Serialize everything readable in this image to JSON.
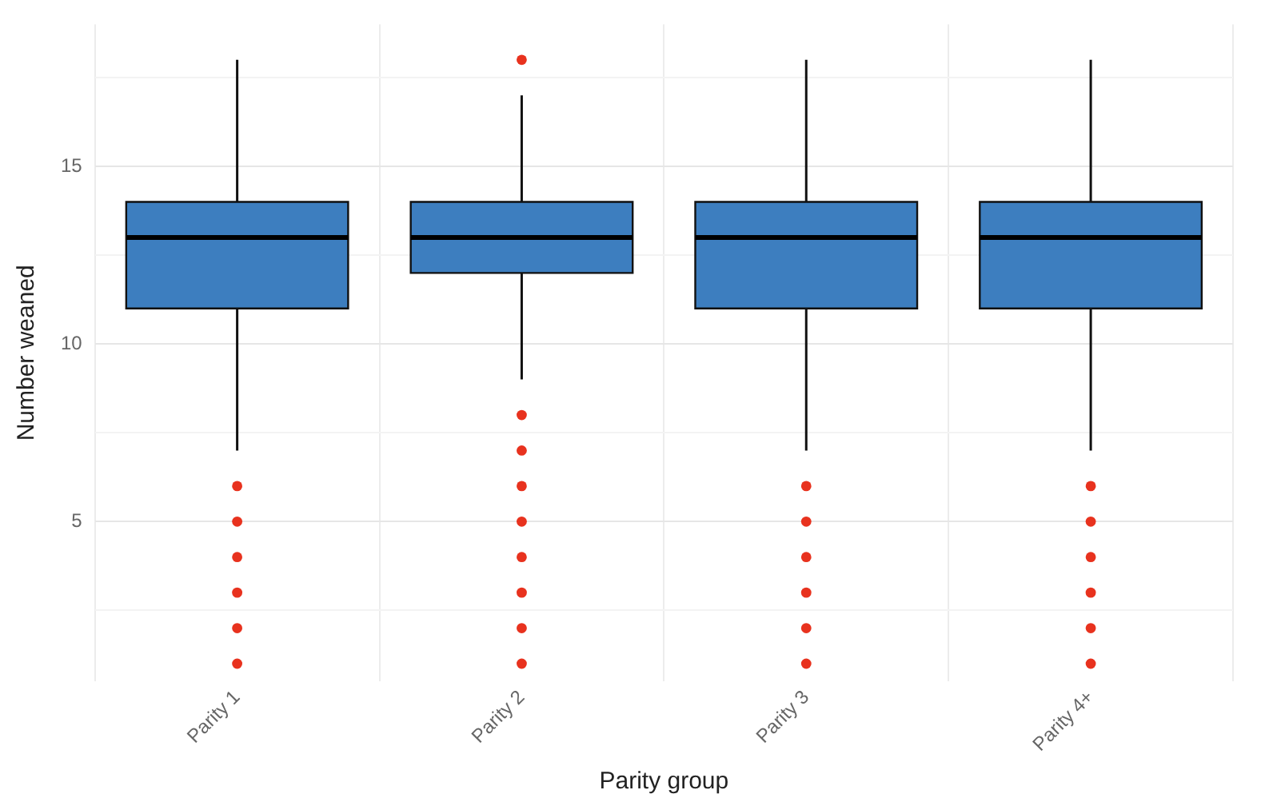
{
  "chart_data": {
    "type": "box",
    "xlabel": "Parity group",
    "ylabel": "Number weaned",
    "categories": [
      "Parity 1",
      "Parity 2",
      "Parity 3",
      "Parity 4+"
    ],
    "ylim": [
      0.5,
      19
    ],
    "yticks": [
      {
        "value": 2.5,
        "label": null
      },
      5,
      {
        "value": 7.5,
        "label": null
      },
      10,
      {
        "value": 12.5,
        "label": null
      },
      15,
      {
        "value": 17.5,
        "label": null
      }
    ],
    "grid": true,
    "series": [
      {
        "color": "#3d7ebf",
        "boxes": [
          {
            "low": 7,
            "q1": 11,
            "median": 13,
            "q3": 14,
            "high": 18
          },
          {
            "low": 9,
            "q1": 12,
            "median": 13,
            "q3": 14,
            "high": 17
          },
          {
            "low": 7,
            "q1": 11,
            "median": 13,
            "q3": 14,
            "high": 18
          },
          {
            "low": 7,
            "q1": 11,
            "median": 13,
            "q3": 14,
            "high": 18
          }
        ]
      },
      {
        "type": "scatter",
        "color": "#e8321e",
        "x": [
          "Parity 1",
          "Parity 1",
          "Parity 1",
          "Parity 1",
          "Parity 1",
          "Parity 1",
          "Parity 2",
          "Parity 2",
          "Parity 2",
          "Parity 2",
          "Parity 2",
          "Parity 2",
          "Parity 2",
          "Parity 2",
          "Parity 2",
          "Parity 3",
          "Parity 3",
          "Parity 3",
          "Parity 3",
          "Parity 3",
          "Parity 3",
          "Parity 4+",
          "Parity 4+",
          "Parity 4+",
          "Parity 4+",
          "Parity 4+",
          "Parity 4+"
        ],
        "values": [
          6,
          5,
          4,
          3,
          2,
          1,
          18,
          8,
          7,
          6,
          5,
          4,
          3,
          2,
          1,
          6,
          5,
          4,
          3,
          2,
          1,
          6,
          5,
          4,
          3,
          2,
          1
        ]
      }
    ]
  }
}
